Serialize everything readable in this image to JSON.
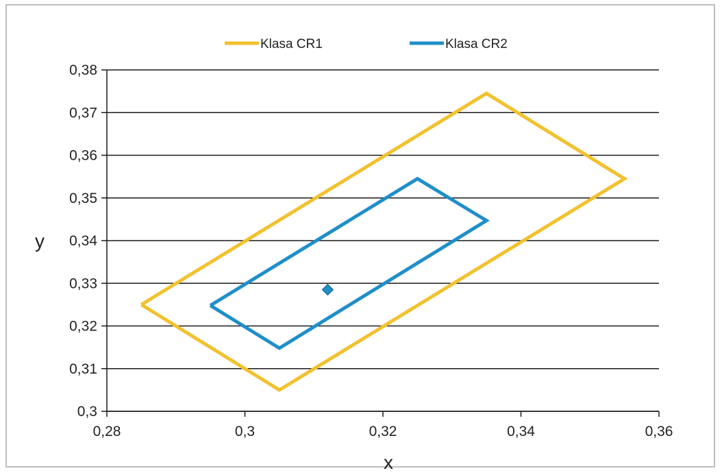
{
  "chart_data": {
    "type": "line",
    "xlabel": "x",
    "ylabel": "y",
    "xlim": [
      0.28,
      0.36
    ],
    "ylim": [
      0.3,
      0.38
    ],
    "x_ticks": [
      "0,28",
      "0,3",
      "0,32",
      "0,34",
      "0,36"
    ],
    "y_ticks": [
      "0,3",
      "0,31",
      "0,32",
      "0,33",
      "0,34",
      "0,35",
      "0,36",
      "0,37",
      "0,38"
    ],
    "x_tick_values": [
      0.28,
      0.3,
      0.32,
      0.34,
      0.36
    ],
    "y_tick_values": [
      0.3,
      0.31,
      0.32,
      0.33,
      0.34,
      0.35,
      0.36,
      0.37,
      0.38
    ],
    "grid": "horizontal",
    "legend_position": "top",
    "series": [
      {
        "name": "Klasa CR1",
        "color": "#f2c12e",
        "points": [
          [
            0.285,
            0.325
          ],
          [
            0.335,
            0.3745
          ],
          [
            0.355,
            0.3545
          ],
          [
            0.305,
            0.305
          ],
          [
            0.285,
            0.325
          ]
        ]
      },
      {
        "name": "Klasa CR2",
        "color": "#1f8fc9",
        "points": [
          [
            0.295,
            0.3248
          ],
          [
            0.325,
            0.3545
          ],
          [
            0.335,
            0.3447
          ],
          [
            0.305,
            0.3148
          ],
          [
            0.295,
            0.3248
          ]
        ]
      }
    ],
    "markers": [
      {
        "x": 0.312,
        "y": 0.3285,
        "color": "#1f8fc9",
        "shape": "diamond"
      }
    ]
  }
}
